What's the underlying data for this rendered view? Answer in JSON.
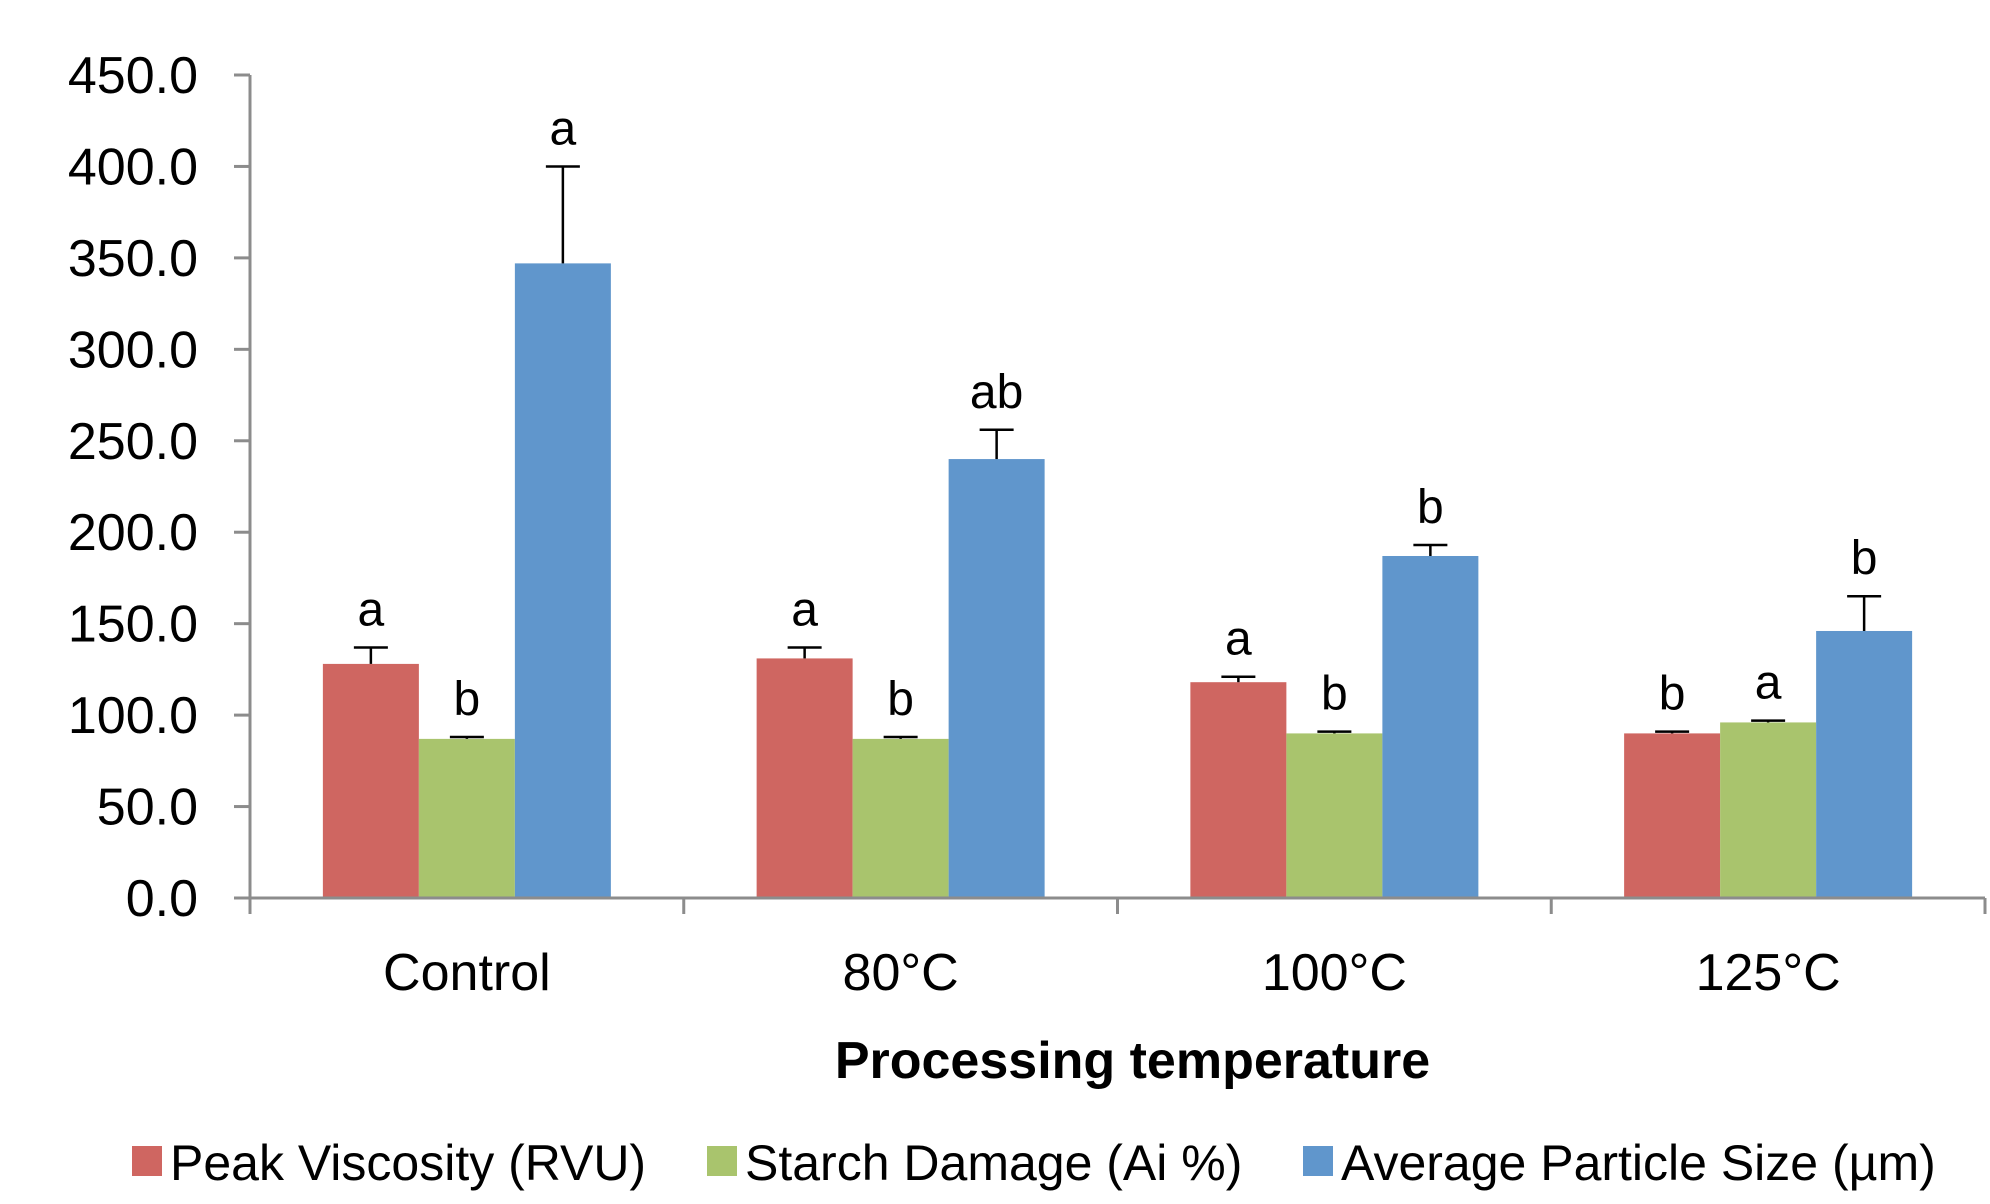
{
  "chart_data": {
    "type": "bar",
    "title": "",
    "xlabel": "Processing temperature",
    "ylabel": "",
    "ylim": [
      0,
      450
    ],
    "yticks": [
      0,
      50,
      100,
      150,
      200,
      250,
      300,
      350,
      400,
      450
    ],
    "ytick_labels": [
      "0.0",
      "50.0",
      "100.0",
      "150.0",
      "200.0",
      "250.0",
      "300.0",
      "350.0",
      "400.0",
      "450.0"
    ],
    "categories": [
      "Control",
      "80°C",
      "100°C",
      "125°C"
    ],
    "legend_position": "bottom",
    "grid": false,
    "series": [
      {
        "name": "Peak Viscosity (RVU)",
        "color": "#cf6661",
        "values": [
          128,
          131,
          118,
          90
        ],
        "errors": [
          9,
          6,
          3,
          1
        ],
        "sig_labels": [
          "a",
          "a",
          "a",
          "b"
        ]
      },
      {
        "name": "Starch Damage (Ai %)",
        "color": "#a9c46d",
        "values": [
          87,
          87,
          90,
          96
        ],
        "errors": [
          1,
          1,
          1,
          1
        ],
        "sig_labels": [
          "b",
          "b",
          "b",
          "a"
        ]
      },
      {
        "name": "Average Particle Size (µm)",
        "color": "#6096cc",
        "values": [
          347,
          240,
          187,
          146
        ],
        "errors": [
          53,
          16,
          6,
          19
        ],
        "sig_labels": [
          "a",
          "ab",
          "b",
          "b"
        ]
      }
    ]
  }
}
